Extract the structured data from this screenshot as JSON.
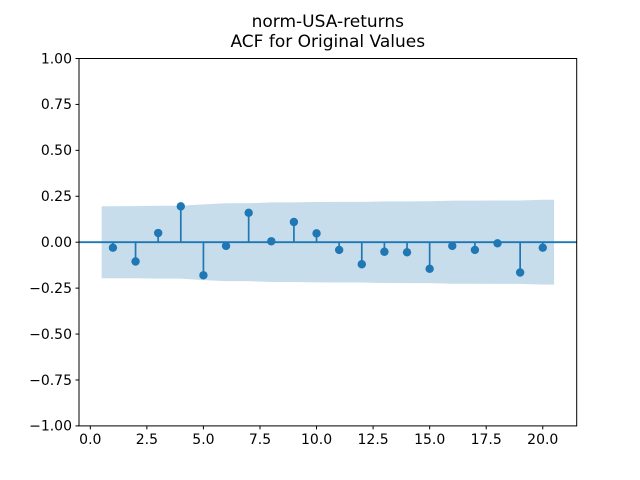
{
  "figure": {
    "background": "#ffffff"
  },
  "chart_data": {
    "type": "stem",
    "title_line1": "norm-USA-returns",
    "title_line2": "ACF for Original Values",
    "title": "norm-USA-returns\nACF for Original Values",
    "xlabel": "",
    "ylabel": "",
    "xlim": [
      -0.5,
      21.5
    ],
    "ylim": [
      -1.0,
      1.0
    ],
    "grid": false,
    "legend": null,
    "x_ticks": [
      0.0,
      2.5,
      5.0,
      7.5,
      10.0,
      12.5,
      15.0,
      17.5,
      20.0
    ],
    "x_tick_labels": [
      "0.0",
      "2.5",
      "5.0",
      "7.5",
      "10.0",
      "12.5",
      "15.0",
      "17.5",
      "20.0"
    ],
    "y_ticks": [
      1.0,
      0.75,
      0.5,
      0.25,
      0.0,
      -0.25,
      -0.5,
      -0.75,
      -1.0
    ],
    "y_tick_labels": [
      "1.00",
      "0.75",
      "0.50",
      "0.25",
      "0.00",
      "−0.25",
      "−0.50",
      "−0.75",
      "−1.00"
    ],
    "zero_line_y": 0.0,
    "lags": [
      1,
      2,
      3,
      4,
      5,
      6,
      7,
      8,
      9,
      10,
      11,
      12,
      13,
      14,
      15,
      16,
      17,
      18,
      19,
      20
    ],
    "acf_values": [
      -0.03,
      -0.105,
      0.05,
      0.195,
      -0.18,
      -0.02,
      0.16,
      0.005,
      0.11,
      0.048,
      -0.042,
      -0.12,
      -0.052,
      -0.055,
      -0.145,
      -0.02,
      -0.042,
      -0.006,
      -0.165,
      -0.03
    ],
    "confidence_band": {
      "x": [
        0.5,
        1,
        2,
        3,
        4,
        5,
        6,
        7,
        8,
        9,
        10,
        11,
        12,
        13,
        14,
        15,
        16,
        17,
        18,
        19,
        20,
        20.5
      ],
      "upper": [
        0.196,
        0.196,
        0.1962,
        0.1981,
        0.1986,
        0.2062,
        0.2118,
        0.2119,
        0.2165,
        0.2165,
        0.2188,
        0.2193,
        0.2195,
        0.2221,
        0.2225,
        0.223,
        0.2264,
        0.2265,
        0.2268,
        0.2268,
        0.2312,
        0.2312
      ],
      "lower": [
        -0.196,
        -0.196,
        -0.1962,
        -0.1981,
        -0.1986,
        -0.2062,
        -0.2118,
        -0.2119,
        -0.2165,
        -0.2165,
        -0.2188,
        -0.2193,
        -0.2195,
        -0.2221,
        -0.2225,
        -0.223,
        -0.2264,
        -0.2265,
        -0.2268,
        -0.2268,
        -0.2312,
        -0.2312
      ]
    },
    "colors": {
      "series": "#1f77b4",
      "band_fill": "rgba(31,119,180,0.25)",
      "axis": "#000000",
      "background": "#ffffff"
    }
  }
}
